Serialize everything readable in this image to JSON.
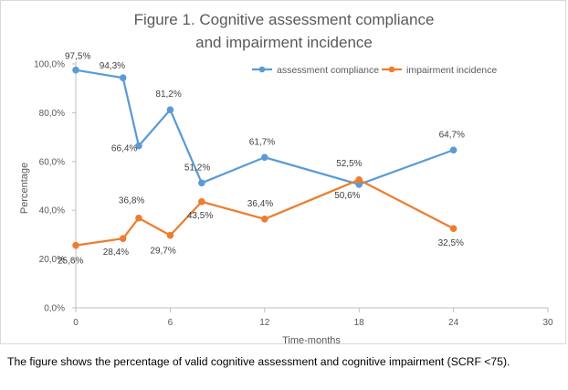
{
  "chart_data": {
    "type": "line",
    "title_lines": [
      "Figure 1. Cognitive assessment compliance",
      "and impairment incidence"
    ],
    "xlabel": "Time-months",
    "ylabel": "Percentage",
    "xlim": [
      0,
      30
    ],
    "ylim": [
      0,
      100
    ],
    "x_ticks": [
      0,
      6,
      12,
      18,
      24,
      30
    ],
    "x_tick_labels": [
      "0",
      "6",
      "12",
      "18",
      "24",
      "30"
    ],
    "y_ticks": [
      0,
      20,
      40,
      60,
      80,
      100
    ],
    "y_tick_labels": [
      "0,0%",
      "20,0%",
      "40,0%",
      "60,0%",
      "80,0%",
      "100,0%"
    ],
    "grid": false,
    "legend_position": "top-right",
    "series": [
      {
        "name": "assessment compliance",
        "color": "#5b9bd5",
        "x": [
          0,
          3,
          4,
          6,
          8,
          12,
          18,
          24
        ],
        "values": [
          97.5,
          94.3,
          66.4,
          81.2,
          51.2,
          61.7,
          50.6,
          64.7
        ],
        "labels": [
          "97,5%",
          "94,3%",
          "66,4%",
          "81,2%",
          "51,2%",
          "61,7%",
          "50,6%",
          "64,7%"
        ]
      },
      {
        "name": "impairment incidence",
        "color": "#ed7d31",
        "x": [
          0,
          3,
          4,
          6,
          8,
          12,
          18,
          24
        ],
        "values": [
          25.6,
          28.4,
          36.8,
          29.7,
          43.5,
          36.4,
          52.5,
          32.5
        ],
        "labels": [
          "25,6%",
          "28,4%",
          "36,8%",
          "29,7%",
          "43,5%",
          "36,4%",
          "52,5%",
          "32,5%"
        ]
      }
    ]
  },
  "caption": "The figure shows the percentage of valid cognitive assessment and cognitive impairment (SCRF <75)."
}
